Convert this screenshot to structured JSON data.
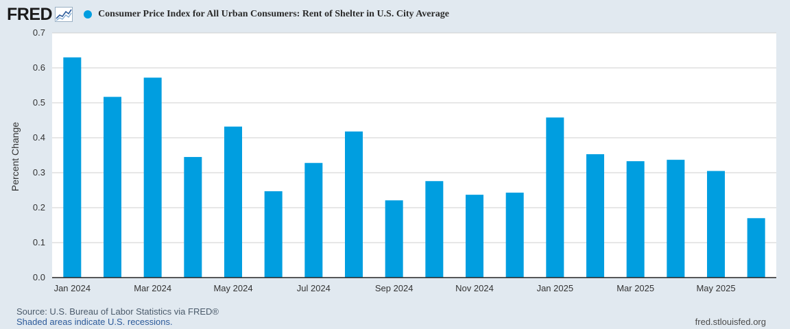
{
  "brand": {
    "logo_text": "FRED"
  },
  "colors": {
    "series": "#009ee0",
    "background": "#e1e9f0",
    "plot": "#ffffff",
    "grid": "#cfcfcf"
  },
  "header": {
    "title": "Consumer Price Index for All Urban Consumers: Rent of Shelter in U.S. City Average"
  },
  "chart_data": {
    "type": "bar",
    "title": "Consumer Price Index for All Urban Consumers: Rent of Shelter in U.S. City Average",
    "ylabel": "Percent Change",
    "xlabel": "",
    "ylim": [
      0,
      0.7
    ],
    "yticks": [
      "0.0",
      "0.1",
      "0.2",
      "0.3",
      "0.4",
      "0.5",
      "0.6",
      "0.7"
    ],
    "grid": true,
    "categories": [
      "Jan 2024",
      "Feb 2024",
      "Mar 2024",
      "Apr 2024",
      "May 2024",
      "Jun 2024",
      "Jul 2024",
      "Aug 2024",
      "Sep 2024",
      "Oct 2024",
      "Nov 2024",
      "Dec 2024",
      "Jan 2025",
      "Feb 2025",
      "Mar 2025",
      "Apr 2025",
      "May 2025",
      "Jun 2025"
    ],
    "xtick_labels": [
      "Jan 2024",
      "Mar 2024",
      "May 2024",
      "Jul 2024",
      "Sep 2024",
      "Nov 2024",
      "Jan 2025",
      "Mar 2025",
      "May 2025"
    ],
    "values": [
      0.63,
      0.517,
      0.572,
      0.345,
      0.432,
      0.247,
      0.328,
      0.418,
      0.221,
      0.276,
      0.237,
      0.243,
      0.458,
      0.353,
      0.333,
      0.337,
      0.305,
      0.17
    ]
  },
  "footer": {
    "source": "Source: U.S. Bureau of Labor Statistics via FRED®",
    "note": "Shaded areas indicate U.S. recessions.",
    "url": "fred.stlouisfed.org"
  }
}
